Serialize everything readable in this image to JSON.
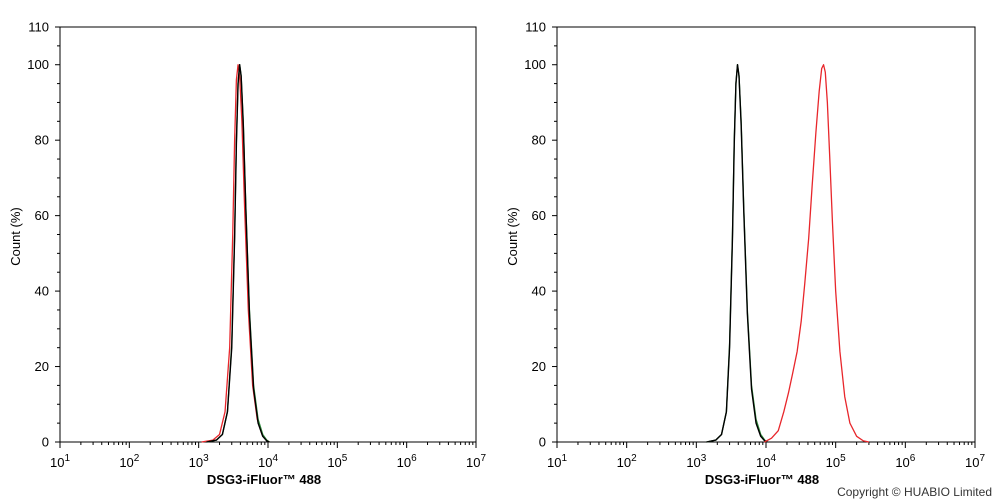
{
  "copyright": "Copyright © HUABIO Limited",
  "colors": {
    "red": "#e8262b",
    "black": "#000000",
    "green": "#2e8b3a"
  },
  "chart_data": [
    {
      "type": "line",
      "xlabel": "DSG3-iFluor™ 488",
      "ylabel": "Count  (%)",
      "xscale": "log",
      "xlim": [
        10,
        10000000
      ],
      "ylim": [
        0,
        110
      ],
      "x_tick_exponents": [
        1,
        2,
        3,
        4,
        5,
        6,
        7
      ],
      "y_ticks": [
        0,
        20,
        40,
        60,
        80,
        100,
        110
      ],
      "grid": false,
      "series": [
        {
          "color": "red",
          "x": [
            1100,
            1600,
            2000,
            2400,
            2800,
            3100,
            3300,
            3500,
            3700,
            3900,
            4200,
            4600,
            5200,
            6000,
            7000,
            8200,
            9500,
            10500
          ],
          "y": [
            0,
            0.5,
            2,
            8,
            25,
            55,
            80,
            96,
            100,
            97,
            85,
            62,
            35,
            15,
            6,
            2,
            0.5,
            0
          ]
        },
        {
          "color": "green",
          "x": [
            1300,
            1800,
            2200,
            2600,
            3000,
            3300,
            3500,
            3700,
            3900,
            4100,
            4400,
            4800,
            5400,
            6200,
            7200,
            8400,
            9600,
            10500
          ],
          "y": [
            0,
            0.5,
            2,
            8,
            26,
            55,
            80,
            95,
            100,
            97,
            85,
            62,
            35,
            15,
            6,
            2,
            0.5,
            0
          ]
        },
        {
          "color": "black",
          "x": [
            1300,
            1800,
            2200,
            2600,
            3000,
            3300,
            3500,
            3700,
            3900,
            4100,
            4400,
            4800,
            5400,
            6200,
            7200,
            8400,
            9600,
            10500
          ],
          "y": [
            0,
            0.5,
            2,
            8,
            25,
            54,
            79,
            95,
            100,
            97,
            84,
            61,
            34,
            14,
            5,
            1.5,
            0.3,
            0
          ]
        }
      ]
    },
    {
      "type": "line",
      "xlabel": "DSG3-iFluor™ 488",
      "ylabel": "Count  (%)",
      "xscale": "log",
      "xlim": [
        10,
        10000000
      ],
      "ylim": [
        0,
        110
      ],
      "x_tick_exponents": [
        1,
        2,
        3,
        4,
        5,
        6,
        7
      ],
      "y_ticks": [
        0,
        20,
        40,
        60,
        80,
        100,
        110
      ],
      "grid": false,
      "series": [
        {
          "color": "green",
          "x": [
            1400,
            1900,
            2300,
            2700,
            3000,
            3300,
            3500,
            3700,
            3900,
            4100,
            4400,
            4800,
            5400,
            6200,
            7200,
            8400,
            9600,
            10500
          ],
          "y": [
            0,
            0.5,
            2,
            8,
            26,
            55,
            80,
            95,
            100,
            97,
            85,
            62,
            35,
            15,
            6,
            2,
            0.5,
            0
          ]
        },
        {
          "color": "black",
          "x": [
            1400,
            1900,
            2300,
            2700,
            3000,
            3300,
            3500,
            3700,
            3900,
            4100,
            4400,
            4800,
            5400,
            6200,
            7200,
            8400,
            9600,
            10500
          ],
          "y": [
            0,
            0.5,
            2,
            8,
            25,
            54,
            79,
            95,
            100,
            97,
            84,
            61,
            34,
            14,
            5,
            1.5,
            0.3,
            0
          ]
        },
        {
          "color": "red",
          "x": [
            9500,
            12000,
            15000,
            18000,
            21000,
            24000,
            28000,
            32000,
            36000,
            41000,
            46000,
            52000,
            58000,
            63000,
            67000,
            71000,
            76000,
            82000,
            90000,
            100000,
            115000,
            135000,
            160000,
            200000,
            250000,
            300000
          ],
          "y": [
            0,
            1,
            3,
            8,
            13,
            18,
            24,
            32,
            42,
            54,
            68,
            82,
            93,
            99,
            100,
            98,
            90,
            76,
            58,
            40,
            24,
            12,
            5,
            1.5,
            0.3,
            0
          ]
        }
      ]
    }
  ]
}
